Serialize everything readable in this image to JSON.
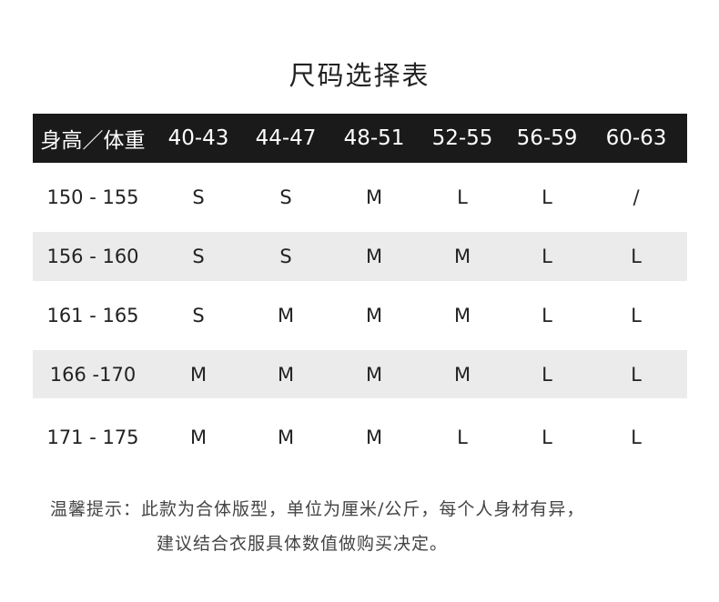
{
  "title": "尺码选择表",
  "table": {
    "headers": [
      "身高／体重",
      "40-43",
      "44-47",
      "48-51",
      "52-55",
      "56-59",
      "60-63"
    ],
    "rows": [
      [
        "150 - 155",
        "S",
        "S",
        "M",
        "L",
        "L",
        "/"
      ],
      [
        "156 - 160",
        "S",
        "S",
        "M",
        "M",
        "L",
        "L"
      ],
      [
        "161 - 165",
        "S",
        "M",
        "M",
        "M",
        "L",
        "L"
      ],
      [
        "166 -170",
        "M",
        "M",
        "M",
        "M",
        "L",
        "L"
      ],
      [
        "171 - 175",
        "M",
        "M",
        "M",
        "L",
        "L",
        "L"
      ]
    ]
  },
  "note": {
    "line1": "温馨提示：此款为合体版型，单位为厘米/公斤，每个人身材有异，",
    "line2": "建议结合衣服具体数值做购买决定。"
  }
}
